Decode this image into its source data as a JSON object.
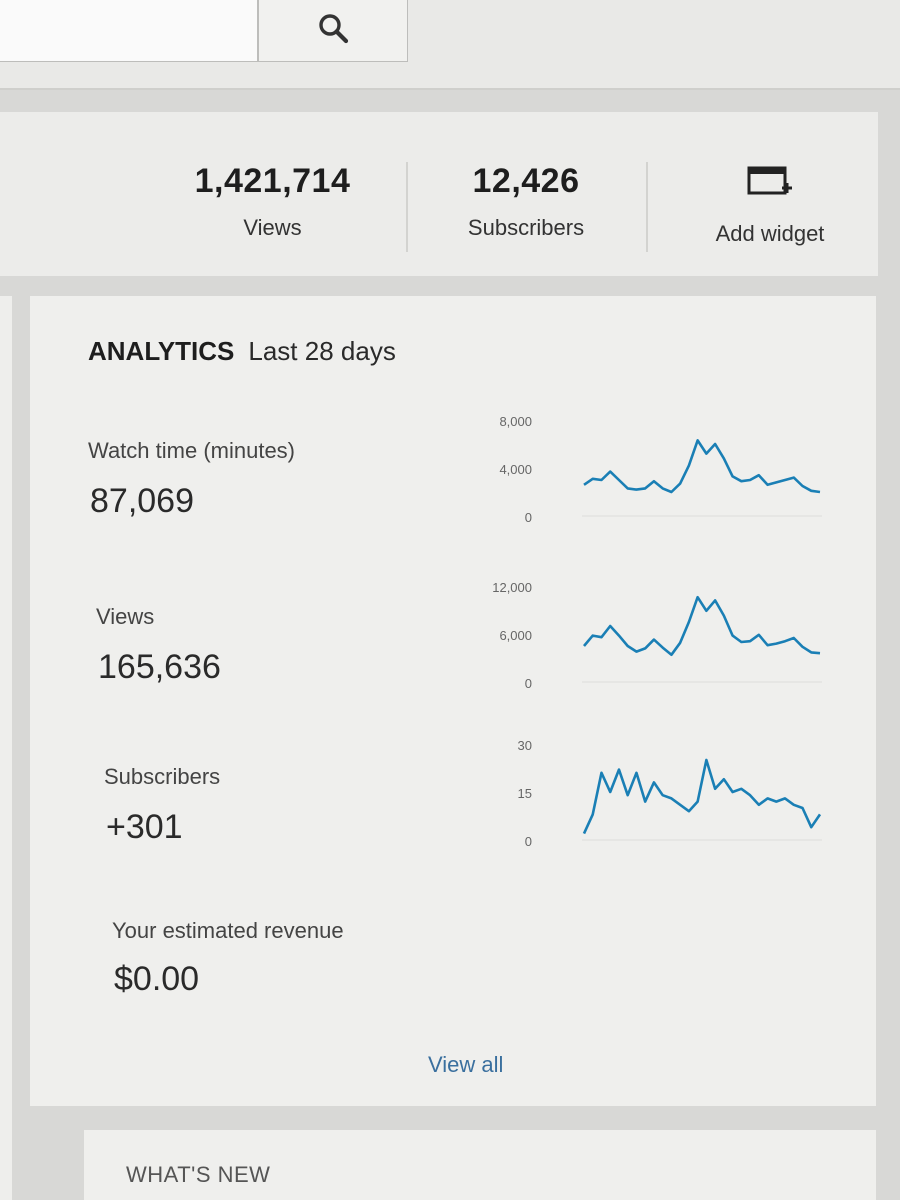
{
  "search": {
    "placeholder": "",
    "button_icon": "search-icon"
  },
  "stats": {
    "views_value": "1,421,714",
    "views_label": "Views",
    "subscribers_value": "12,426",
    "subscribers_label": "Subscribers",
    "add_widget_label": "Add widget",
    "add_widget_icon": "add-widget-icon"
  },
  "analytics": {
    "title": "ANALYTICS",
    "period": "Last 28 days",
    "metrics": [
      {
        "label": "Watch time (minutes)",
        "value": "87,069",
        "ticks": [
          "8,000",
          "4,000",
          "0"
        ]
      },
      {
        "label": "Views",
        "value": "165,636",
        "ticks": [
          "12,000",
          "6,000",
          "0"
        ]
      },
      {
        "label": "Subscribers",
        "value": "+301",
        "ticks": [
          "30",
          "15",
          "0"
        ]
      }
    ],
    "revenue_label": "Your estimated revenue",
    "revenue_value": "$0.00",
    "view_all": "View all"
  },
  "chart_data": [
    {
      "type": "line",
      "ylim": [
        0,
        8000
      ],
      "y_ticks": [
        0,
        4000,
        8000
      ],
      "x": [
        1,
        2,
        3,
        4,
        5,
        6,
        7,
        8,
        9,
        10,
        11,
        12,
        13,
        14,
        15,
        16,
        17,
        18,
        19,
        20,
        21,
        22,
        23,
        24,
        25,
        26,
        27,
        28
      ],
      "values": [
        2600,
        3100,
        3000,
        3700,
        3000,
        2300,
        2200,
        2300,
        2900,
        2300,
        2000,
        2700,
        4200,
        6300,
        5200,
        6000,
        4800,
        3300,
        2900,
        3000,
        3400,
        2600,
        2800,
        3000,
        3200,
        2500,
        2100,
        2000
      ],
      "color": "#1a7fb5"
    },
    {
      "type": "line",
      "ylim": [
        0,
        12000
      ],
      "y_ticks": [
        0,
        6000,
        12000
      ],
      "x": [
        1,
        2,
        3,
        4,
        5,
        6,
        7,
        8,
        9,
        10,
        11,
        12,
        13,
        14,
        15,
        16,
        17,
        18,
        19,
        20,
        21,
        22,
        23,
        24,
        25,
        26,
        27,
        28
      ],
      "values": [
        4500,
        5800,
        5600,
        7000,
        5800,
        4500,
        3800,
        4200,
        5300,
        4300,
        3400,
        4900,
        7500,
        10600,
        8900,
        10200,
        8300,
        5800,
        5000,
        5100,
        5900,
        4600,
        4800,
        5100,
        5500,
        4400,
        3700,
        3600
      ],
      "color": "#1a7fb5"
    },
    {
      "type": "line",
      "ylim": [
        0,
        30
      ],
      "y_ticks": [
        0,
        15,
        30
      ],
      "x": [
        1,
        2,
        3,
        4,
        5,
        6,
        7,
        8,
        9,
        10,
        11,
        12,
        13,
        14,
        15,
        16,
        17,
        18,
        19,
        20,
        21,
        22,
        23,
        24,
        25,
        26,
        27,
        28
      ],
      "values": [
        2,
        8,
        21,
        15,
        22,
        14,
        21,
        12,
        18,
        14,
        13,
        11,
        9,
        12,
        25,
        16,
        19,
        15,
        16,
        14,
        11,
        13,
        12,
        13,
        11,
        10,
        4,
        8
      ],
      "color": "#1a7fb5"
    }
  ],
  "whats_new": {
    "title": "WHAT'S NEW"
  }
}
